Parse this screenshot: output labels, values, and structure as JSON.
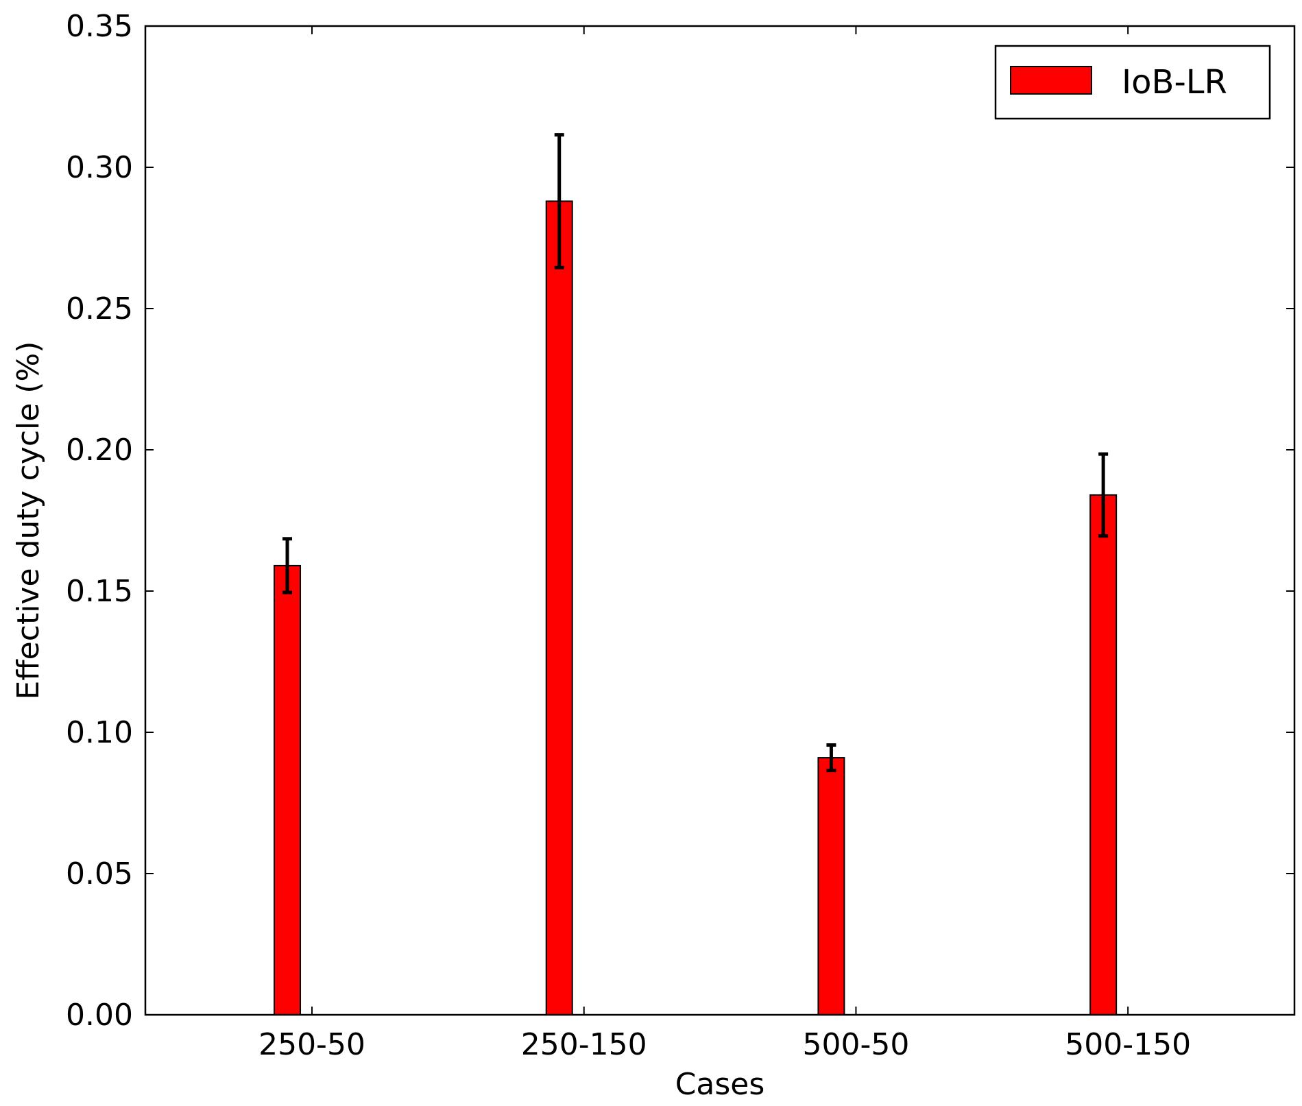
{
  "chart_data": {
    "type": "bar",
    "title": "",
    "xlabel": "Cases",
    "ylabel": "Effective duty cycle (%)",
    "categories": [
      "250-50",
      "250-150",
      "500-50",
      "500-150"
    ],
    "series": [
      {
        "name": "IoB-LR",
        "values": [
          0.159,
          0.288,
          0.091,
          0.184
        ],
        "errors": [
          0.0095,
          0.0235,
          0.0045,
          0.0145
        ],
        "color": "#ff0000"
      }
    ],
    "ylim": [
      0,
      0.35
    ],
    "yticks": [
      "0.00",
      "0.05",
      "0.10",
      "0.15",
      "0.20",
      "0.25",
      "0.30",
      "0.35"
    ],
    "ytick_values": [
      0,
      0.05,
      0.1,
      0.15,
      0.2,
      0.25,
      0.3,
      0.35
    ],
    "grid": false,
    "legend_position": "top-right",
    "error_color": "#000000"
  }
}
